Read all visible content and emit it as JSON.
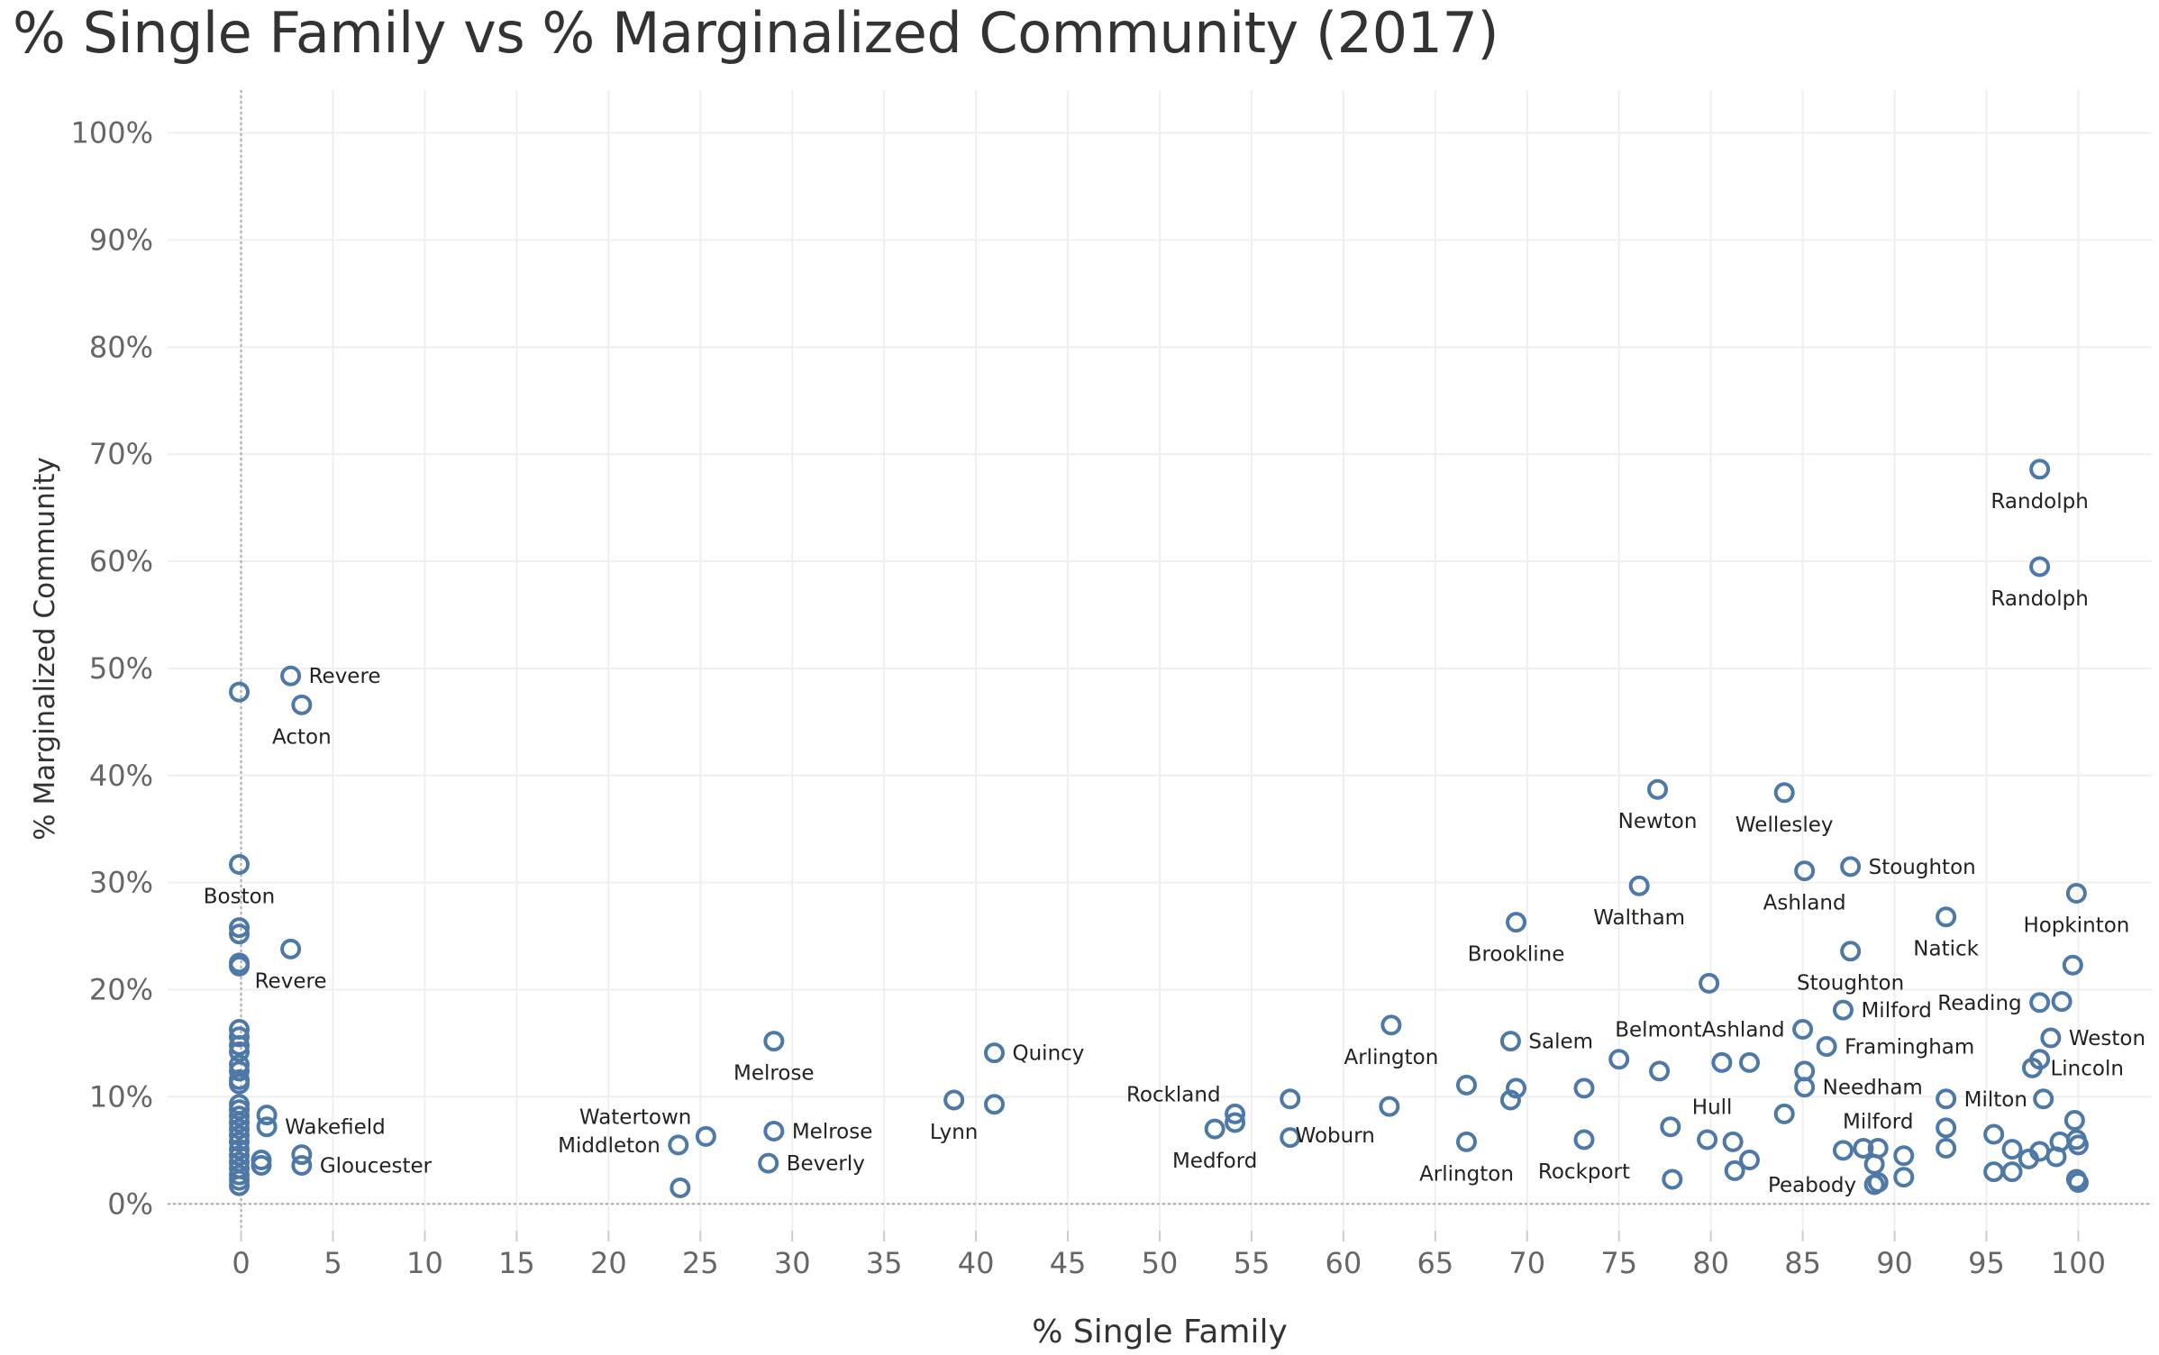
{
  "chart_data": {
    "type": "scatter",
    "title": "% Single Family vs % Marginalized Community (2017)",
    "xlabel": "% Single Family",
    "ylabel": "% Marginalized Community",
    "xlim": [
      -4,
      104
    ],
    "ylim": [
      -2.5,
      104
    ],
    "x_ticks": [
      0,
      5,
      10,
      15,
      20,
      25,
      30,
      35,
      40,
      45,
      50,
      55,
      60,
      65,
      70,
      75,
      80,
      85,
      90,
      95,
      100
    ],
    "y_ticks": [
      0,
      10,
      20,
      30,
      40,
      50,
      60,
      70,
      80,
      90,
      100
    ],
    "y_tick_format": "percent",
    "grid": true,
    "marker": "hollow-circle",
    "color": "#4e79a7",
    "points": [
      {
        "x": 97.9,
        "y": 68.6,
        "label": "Randolph",
        "lp": "below"
      },
      {
        "x": 97.9,
        "y": 59.5,
        "label": "Randolph",
        "lp": "below"
      },
      {
        "x": 2.7,
        "y": 49.3,
        "label": "Revere",
        "lp": "right"
      },
      {
        "x": 3.3,
        "y": 46.6,
        "label": "Acton",
        "lp": "below"
      },
      {
        "x": -0.1,
        "y": 47.8
      },
      {
        "x": 77.1,
        "y": 38.7,
        "label": "Newton",
        "lp": "below"
      },
      {
        "x": 84.0,
        "y": 38.4,
        "label": "Wellesley",
        "lp": "below"
      },
      {
        "x": 76.1,
        "y": 29.7,
        "label": "Waltham",
        "lp": "below"
      },
      {
        "x": 85.1,
        "y": 31.1,
        "label": "Ashland",
        "lp": "below"
      },
      {
        "x": 87.6,
        "y": 31.5,
        "label": "Stoughton",
        "lp": "right"
      },
      {
        "x": -0.1,
        "y": 31.7,
        "label": "Boston",
        "lp": "below"
      },
      {
        "x": -0.1,
        "y": 25.8
      },
      {
        "x": -0.1,
        "y": 25.2
      },
      {
        "x": -0.1,
        "y": 22.5
      },
      {
        "x": -0.1,
        "y": 22.2
      },
      {
        "x": 2.7,
        "y": 23.8,
        "label": "Revere",
        "lp": "below"
      },
      {
        "x": 69.4,
        "y": 26.3,
        "label": "Brookline",
        "lp": "below"
      },
      {
        "x": 99.9,
        "y": 29.0,
        "label": "Hopkinton",
        "lp": "below"
      },
      {
        "x": 92.8,
        "y": 26.8,
        "label": "Natick",
        "lp": "below"
      },
      {
        "x": 87.6,
        "y": 23.6,
        "label": "Stoughton",
        "lp": "below"
      },
      {
        "x": 99.7,
        "y": 22.3
      },
      {
        "x": 79.9,
        "y": 20.6
      },
      {
        "x": 87.2,
        "y": 18.1,
        "label": "Milford",
        "lp": "right"
      },
      {
        "x": 97.9,
        "y": 18.8,
        "label": "Reading",
        "lp": "left"
      },
      {
        "x": 99.1,
        "y": 18.9
      },
      {
        "x": 85.0,
        "y": 16.3,
        "label": "BelmontAshland",
        "lp": "left"
      },
      {
        "x": 86.3,
        "y": 14.7,
        "label": "Framingham",
        "lp": "right"
      },
      {
        "x": 98.5,
        "y": 15.5,
        "label": "Weston",
        "lp": "right"
      },
      {
        "x": 97.9,
        "y": 13.5
      },
      {
        "x": 97.5,
        "y": 12.7,
        "label": "Lincoln",
        "lp": "right"
      },
      {
        "x": 62.6,
        "y": 16.7,
        "label": "Arlington",
        "lp": "below"
      },
      {
        "x": 69.1,
        "y": 15.2,
        "label": "Salem",
        "lp": "right"
      },
      {
        "x": 75.0,
        "y": 13.5
      },
      {
        "x": 77.2,
        "y": 12.4
      },
      {
        "x": 80.6,
        "y": 13.2
      },
      {
        "x": 82.1,
        "y": 13.2
      },
      {
        "x": 85.1,
        "y": 12.4
      },
      {
        "x": 85.1,
        "y": 10.9,
        "label": "Needham",
        "lp": "right"
      },
      {
        "x": 92.8,
        "y": 9.8,
        "label": "Milton",
        "lp": "right"
      },
      {
        "x": 98.1,
        "y": 9.8
      },
      {
        "x": 66.7,
        "y": 11.1
      },
      {
        "x": 69.4,
        "y": 10.8
      },
      {
        "x": 69.1,
        "y": 9.7
      },
      {
        "x": 73.1,
        "y": 10.8
      },
      {
        "x": 62.5,
        "y": 9.1,
        "label": "Woburn",
        "lp": "below-left"
      },
      {
        "x": 57.1,
        "y": 9.8
      },
      {
        "x": 54.1,
        "y": 8.4,
        "label": "Rockland",
        "lp": "above-left"
      },
      {
        "x": 54.1,
        "y": 7.6
      },
      {
        "x": 53.0,
        "y": 7.0,
        "label": "Medford",
        "lp": "below"
      },
      {
        "x": 57.1,
        "y": 6.2
      },
      {
        "x": 66.7,
        "y": 5.8,
        "label": "Arlington",
        "lp": "below"
      },
      {
        "x": 73.1,
        "y": 6.0,
        "label": "Rockport",
        "lp": "below"
      },
      {
        "x": 77.8,
        "y": 7.2,
        "label": "Hull",
        "lp": "above-right"
      },
      {
        "x": 79.8,
        "y": 6.0
      },
      {
        "x": 81.2,
        "y": 5.8
      },
      {
        "x": 82.1,
        "y": 4.1
      },
      {
        "x": 81.3,
        "y": 3.1
      },
      {
        "x": 77.9,
        "y": 2.3
      },
      {
        "x": 84.0,
        "y": 8.4
      },
      {
        "x": 87.2,
        "y": 5.0
      },
      {
        "x": 88.3,
        "y": 5.2
      },
      {
        "x": 89.1,
        "y": 5.2,
        "label": "Milford",
        "lp": "above"
      },
      {
        "x": 88.9,
        "y": 3.7
      },
      {
        "x": 88.9,
        "y": 1.8,
        "label": "Peabody",
        "lp": "left"
      },
      {
        "x": 89.1,
        "y": 2.0
      },
      {
        "x": 90.5,
        "y": 4.5
      },
      {
        "x": 90.5,
        "y": 2.5
      },
      {
        "x": 92.8,
        "y": 7.1
      },
      {
        "x": 92.8,
        "y": 5.2
      },
      {
        "x": 95.4,
        "y": 6.5
      },
      {
        "x": 96.4,
        "y": 5.1
      },
      {
        "x": 95.4,
        "y": 3.0
      },
      {
        "x": 96.4,
        "y": 3.0
      },
      {
        "x": 97.3,
        "y": 4.2
      },
      {
        "x": 97.9,
        "y": 4.9
      },
      {
        "x": 98.8,
        "y": 4.4
      },
      {
        "x": 99.0,
        "y": 5.8
      },
      {
        "x": 99.8,
        "y": 7.8
      },
      {
        "x": 99.9,
        "y": 6.0
      },
      {
        "x": 100.0,
        "y": 5.5
      },
      {
        "x": 99.9,
        "y": 2.3
      },
      {
        "x": 100.0,
        "y": 2.0
      },
      {
        "x": 29.0,
        "y": 15.2,
        "label": "Melrose",
        "lp": "below"
      },
      {
        "x": 41.0,
        "y": 14.1,
        "label": "Quincy",
        "lp": "right"
      },
      {
        "x": 38.8,
        "y": 9.7,
        "label": "Lynn",
        "lp": "below"
      },
      {
        "x": 41.0,
        "y": 9.3
      },
      {
        "x": 25.3,
        "y": 6.3,
        "label": "Watertown",
        "lp": "above-left"
      },
      {
        "x": 23.8,
        "y": 5.5,
        "label": "Middleton",
        "lp": "left"
      },
      {
        "x": 29.0,
        "y": 6.8,
        "label": "Melrose",
        "lp": "right"
      },
      {
        "x": 28.7,
        "y": 3.8,
        "label": "Beverly",
        "lp": "right"
      },
      {
        "x": 23.9,
        "y": 1.5
      },
      {
        "x": -0.1,
        "y": 16.3
      },
      {
        "x": -0.1,
        "y": 15.6
      },
      {
        "x": -0.1,
        "y": 14.8
      },
      {
        "x": -0.1,
        "y": 14.2
      },
      {
        "x": -0.1,
        "y": 13.0
      },
      {
        "x": -0.1,
        "y": 12.4
      },
      {
        "x": -0.1,
        "y": 11.6
      },
      {
        "x": -0.1,
        "y": 11.2
      },
      {
        "x": -0.1,
        "y": 9.3
      },
      {
        "x": -0.1,
        "y": 8.8
      },
      {
        "x": -0.1,
        "y": 8.2
      },
      {
        "x": -0.1,
        "y": 7.6
      },
      {
        "x": -0.1,
        "y": 7.0
      },
      {
        "x": -0.1,
        "y": 6.4
      },
      {
        "x": -0.1,
        "y": 5.8
      },
      {
        "x": -0.1,
        "y": 5.1
      },
      {
        "x": -0.1,
        "y": 4.5
      },
      {
        "x": -0.1,
        "y": 3.9
      },
      {
        "x": -0.1,
        "y": 3.3
      },
      {
        "x": -0.1,
        "y": 2.7
      },
      {
        "x": -0.1,
        "y": 2.2
      },
      {
        "x": -0.1,
        "y": 1.7
      },
      {
        "x": 1.4,
        "y": 8.3
      },
      {
        "x": 1.4,
        "y": 7.2,
        "label": "Wakefield",
        "lp": "right"
      },
      {
        "x": 1.1,
        "y": 4.1
      },
      {
        "x": 1.1,
        "y": 3.6
      },
      {
        "x": 3.3,
        "y": 4.6
      },
      {
        "x": 3.3,
        "y": 3.6,
        "label": "Gloucester",
        "lp": "right"
      }
    ]
  }
}
